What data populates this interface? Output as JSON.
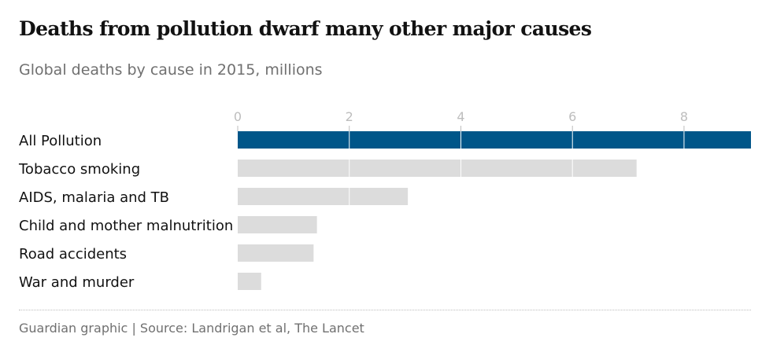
{
  "header": {
    "title": "Deaths from pollution dwarf many other major causes",
    "subtitle": "Global deaths by cause in 2015, millions"
  },
  "footer": {
    "source": "Guardian graphic | Source: Landrigan et al, The Lancet"
  },
  "colors": {
    "highlight": "#005689",
    "bar": "#dcdcdc",
    "label": "#121212",
    "tick": "#bdbdbd",
    "grid": "#ffffff"
  },
  "chart_data": {
    "type": "bar",
    "orientation": "horizontal",
    "categories": [
      "All Pollution",
      "Tobacco smoking",
      "AIDS, malaria and TB",
      "Child and mother malnutrition",
      "Road accidents",
      "War and murder"
    ],
    "values": [
      9.2,
      7.15,
      3.05,
      1.42,
      1.36,
      0.42
    ],
    "highlighted": [
      "All Pollution"
    ],
    "title": "Deaths from pollution dwarf many other major causes",
    "subtitle": "Global deaths by cause in 2015, millions",
    "xlabel": "",
    "ylabel": "",
    "xlim": [
      0,
      9.2
    ],
    "xticks": [
      0,
      2,
      4,
      6,
      8
    ],
    "grid": true,
    "legend": "none"
  }
}
